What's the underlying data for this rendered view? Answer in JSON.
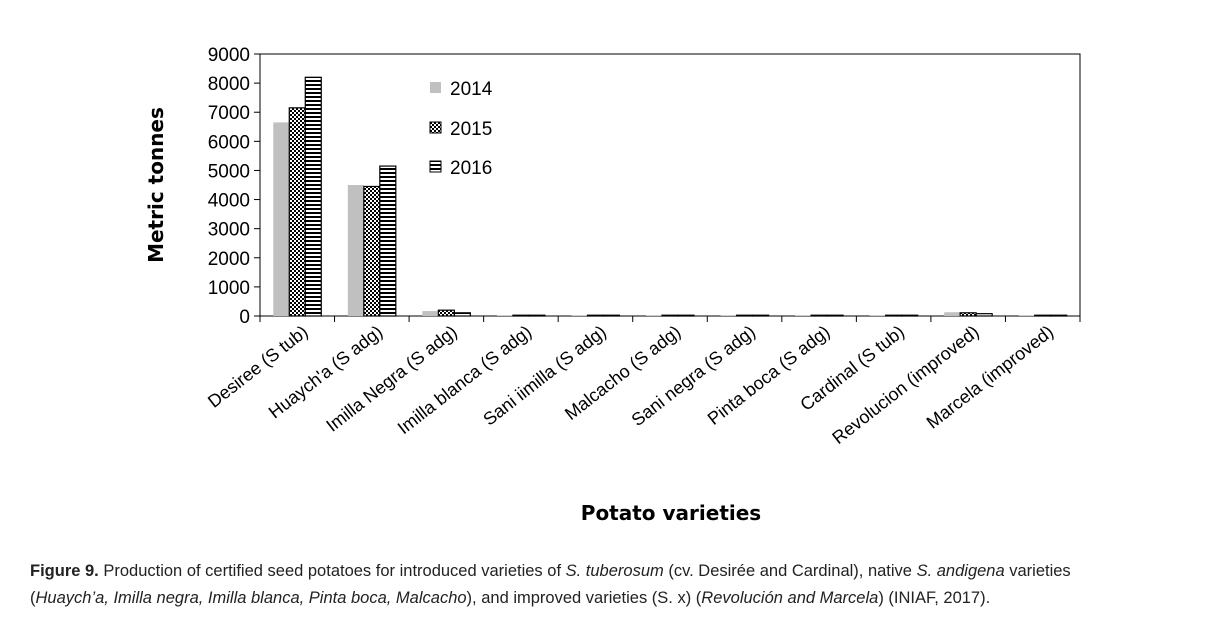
{
  "chart_data": {
    "type": "bar",
    "categories": [
      "Desiree (S tub)",
      "Huaych'a (S adg)",
      "Imilla Negra (S adg)",
      "Imilla blanca (S adg)",
      "Sani iimilla (S adg)",
      "Malcacho (S adg)",
      "Sani negra (S adg)",
      "Pinta boca (S adg)",
      "Cardinal (S tub)",
      "Revolucion (improved)",
      "Marcela (improved)"
    ],
    "series": [
      {
        "name": "2014",
        "values": [
          6650,
          4500,
          170,
          0,
          0,
          0,
          0,
          0,
          0,
          130,
          0
        ],
        "color": "#c0c0c0",
        "pattern": "solid"
      },
      {
        "name": "2015",
        "values": [
          7150,
          4450,
          200,
          10,
          10,
          10,
          10,
          10,
          0,
          110,
          10
        ],
        "color": "#000000",
        "pattern": "dots"
      },
      {
        "name": "2016",
        "values": [
          8200,
          5150,
          110,
          10,
          10,
          10,
          10,
          10,
          10,
          80,
          10
        ],
        "color": "#000000",
        "pattern": "stripes"
      }
    ],
    "xlabel": "Potato varieties",
    "ylabel": "Metric tonnes",
    "ylim": [
      0,
      9000
    ],
    "yticks": [
      0,
      1000,
      2000,
      3000,
      4000,
      5000,
      6000,
      7000,
      8000,
      9000
    ],
    "legend_position": "top-center-left",
    "grid": false
  },
  "caption": {
    "label": "Figure 9.",
    "line1_a": " Production of certified seed potatoes for introduced varieties of ",
    "line1_b": "S. tuberosum",
    "line1_c": " (cv. Desirée and Cardinal), native ",
    "line1_d": "S. andigena",
    "line1_e": " varieties",
    "line2_a": "(",
    "line2_b": "Huaych’a, Imilla negra, Imilla blanca, Pinta boca, Malcacho",
    "line2_c": "), and improved varieties (S. x) (",
    "line2_d": "Revolución and Marcela",
    "line2_e": ") (INIAF, 2017)."
  }
}
